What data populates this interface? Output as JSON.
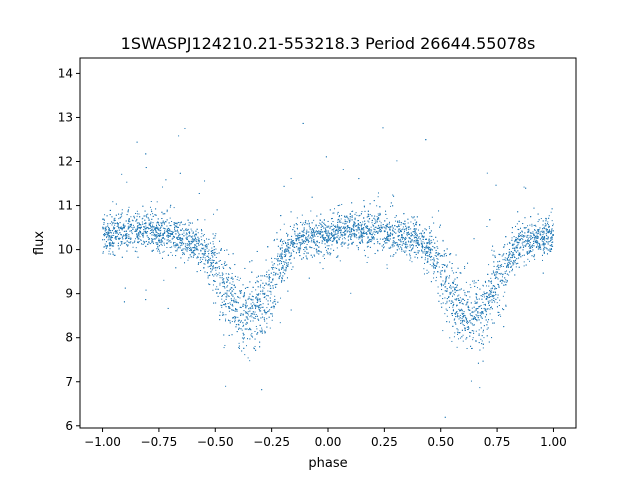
{
  "chart_data": {
    "type": "scatter",
    "title": "1SWASPJ124210.21-553218.3 Period 26644.55078s",
    "xlabel": "phase",
    "ylabel": "flux",
    "xlim": [
      -1.1,
      1.1
    ],
    "ylim": [
      5.95,
      14.35
    ],
    "xticks": [
      -1.0,
      -0.75,
      -0.5,
      -0.25,
      0.0,
      0.25,
      0.5,
      0.75,
      1.0
    ],
    "xtick_labels": [
      "−1.00",
      "−0.75",
      "−0.50",
      "−0.25",
      "0.00",
      "0.25",
      "0.50",
      "0.75",
      "1.00"
    ],
    "yticks": [
      6,
      7,
      8,
      9,
      10,
      11,
      12,
      13,
      14
    ],
    "ytick_labels": [
      "6",
      "7",
      "8",
      "9",
      "10",
      "11",
      "12",
      "13",
      "14"
    ],
    "grid": false,
    "legend": "none",
    "series": [
      {
        "color": "#1f77b4",
        "marker_size": 1,
        "profile": {
          "phase": [
            -1.0,
            -0.9,
            -0.8,
            -0.7,
            -0.6,
            -0.55,
            -0.5,
            -0.45,
            -0.4,
            -0.35,
            -0.3,
            -0.25,
            -0.2,
            -0.15,
            -0.1,
            0.0,
            0.1,
            0.2,
            0.3,
            0.4,
            0.45,
            0.5,
            0.55,
            0.6,
            0.65,
            0.7,
            0.75,
            0.8,
            0.85,
            0.9,
            1.0
          ],
          "flux": [
            10.35,
            10.4,
            10.45,
            10.35,
            10.2,
            10.0,
            9.6,
            9.0,
            8.6,
            8.55,
            8.65,
            9.2,
            9.8,
            10.15,
            10.25,
            10.35,
            10.45,
            10.45,
            10.35,
            10.2,
            10.0,
            9.6,
            9.0,
            8.55,
            8.5,
            8.7,
            9.2,
            9.8,
            10.1,
            10.2,
            10.3
          ]
        }
      }
    ]
  }
}
